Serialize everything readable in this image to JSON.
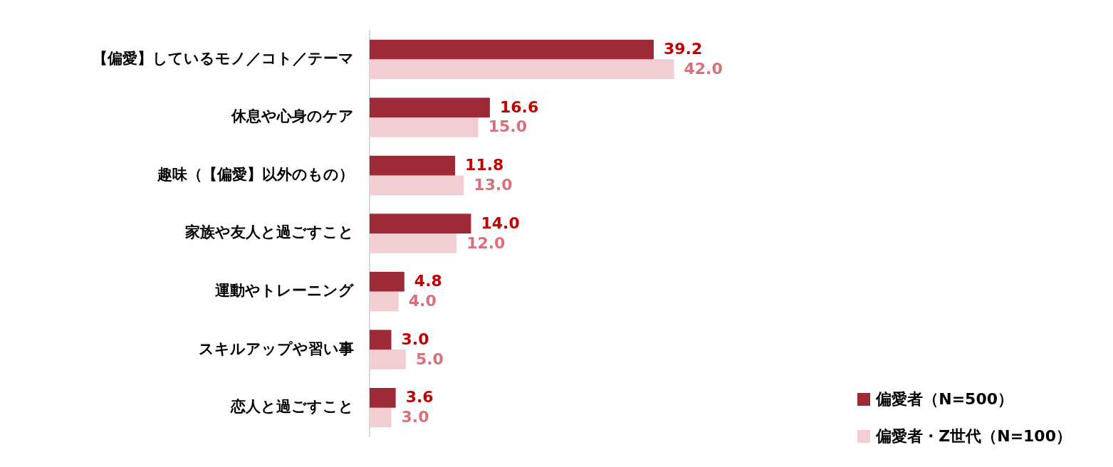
{
  "chart_data": {
    "type": "bar",
    "orientation": "horizontal",
    "categories": [
      "【偏愛】しているモノ／コト／テーマ",
      "休息や心身のケア",
      "趣味（【偏愛】以外のもの）",
      "家族や友人と過ごすこと",
      "運動やトレーニング",
      "スキルアップや習い事",
      "恋人と過ごすこと"
    ],
    "series": [
      {
        "name": "偏愛者（N=500）",
        "color": "#9e2a38",
        "values": [
          39.2,
          16.6,
          11.8,
          14.0,
          4.8,
          3.0,
          3.6
        ],
        "value_labels": [
          "39.2",
          "16.6",
          "11.8",
          "14.0",
          "4.8",
          "3.0",
          "3.6"
        ]
      },
      {
        "name": "偏愛者・Z世代（N=100）",
        "color": "#f2cdd2",
        "values": [
          42.0,
          15.0,
          13.0,
          12.0,
          4.0,
          5.0,
          3.0
        ],
        "value_labels": [
          "42.0",
          "15.0",
          "13.0",
          "12.0",
          "4.0",
          "5.0",
          "3.0"
        ]
      }
    ],
    "legend": "bottom right",
    "tick_labels": "y"
  }
}
